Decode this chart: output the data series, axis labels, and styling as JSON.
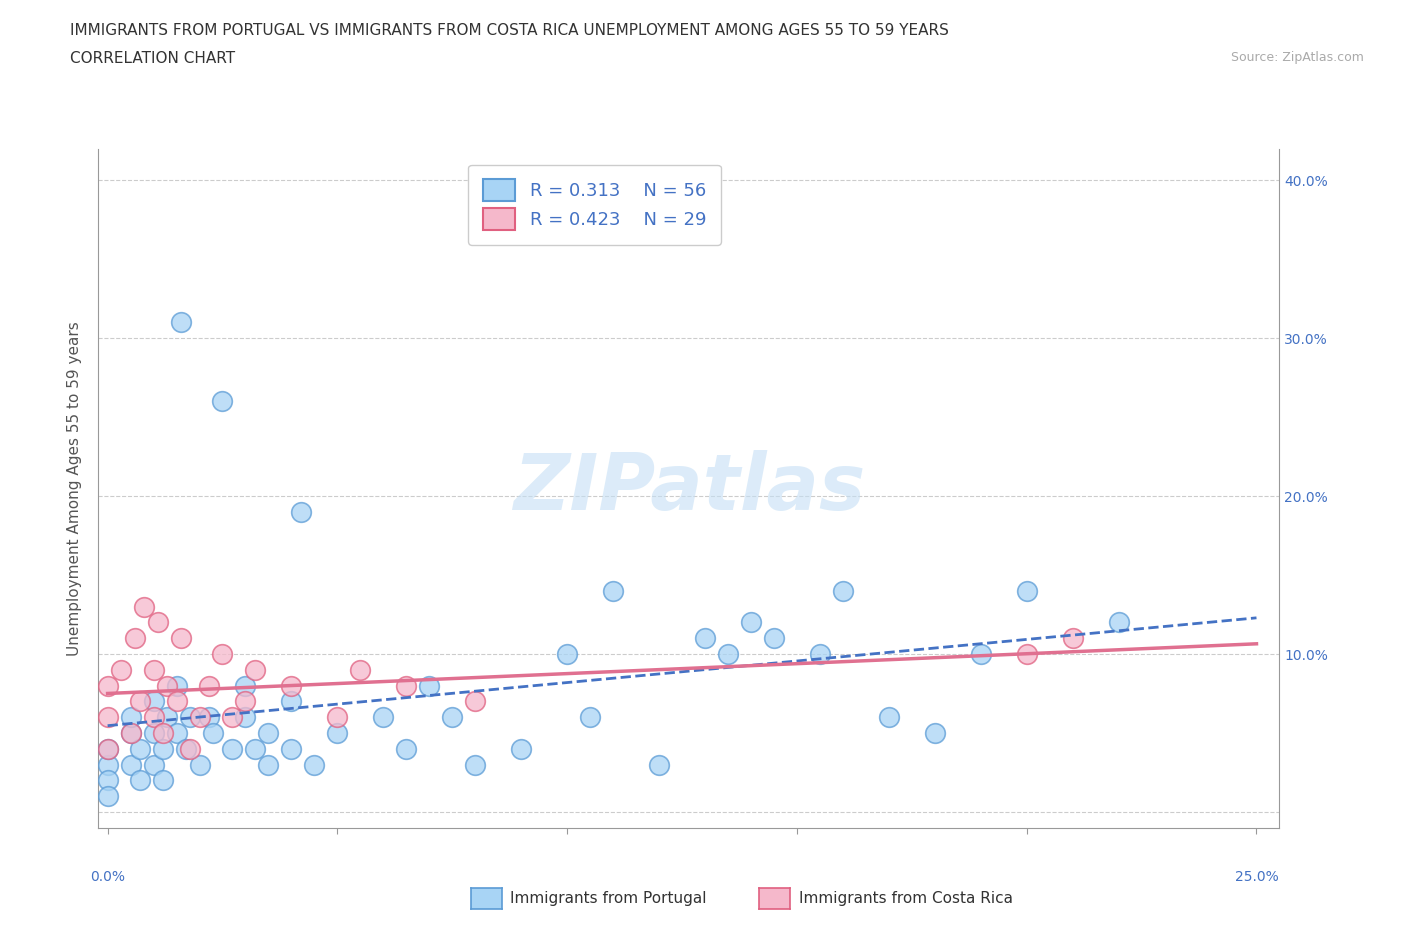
{
  "title_line1": "IMMIGRANTS FROM PORTUGAL VS IMMIGRANTS FROM COSTA RICA UNEMPLOYMENT AMONG AGES 55 TO 59 YEARS",
  "title_line2": "CORRELATION CHART",
  "source_text": "Source: ZipAtlas.com",
  "ylabel": "Unemployment Among Ages 55 to 59 years",
  "xlim": [
    -0.002,
    0.255
  ],
  "ylim": [
    -0.01,
    0.42
  ],
  "xtick_vals": [
    0.0,
    0.05,
    0.1,
    0.15,
    0.2,
    0.25
  ],
  "ytick_vals": [
    0.0,
    0.1,
    0.2,
    0.3,
    0.4
  ],
  "portugal_color": "#a8d4f5",
  "costa_rica_color": "#f5b8cb",
  "portugal_edge_color": "#5b9bd5",
  "costa_rica_edge_color": "#e06080",
  "portugal_line_color": "#4472c4",
  "costa_rica_line_color": "#e07090",
  "right_tick_color": "#4472c4",
  "bottom_tick_color": "#4472c4",
  "R_portugal": 0.313,
  "N_portugal": 56,
  "R_costa_rica": 0.423,
  "N_costa_rica": 29,
  "legend_label_portugal": "Immigrants from Portugal",
  "legend_label_costa_rica": "Immigrants from Costa Rica",
  "watermark": "ZIPatlas",
  "portugal_x": [
    0.0,
    0.0,
    0.0,
    0.0,
    0.005,
    0.005,
    0.005,
    0.007,
    0.007,
    0.01,
    0.01,
    0.01,
    0.012,
    0.012,
    0.013,
    0.015,
    0.015,
    0.016,
    0.017,
    0.018,
    0.02,
    0.022,
    0.023,
    0.025,
    0.027,
    0.03,
    0.03,
    0.032,
    0.035,
    0.035,
    0.04,
    0.04,
    0.042,
    0.045,
    0.05,
    0.06,
    0.065,
    0.07,
    0.075,
    0.08,
    0.09,
    0.1,
    0.105,
    0.11,
    0.12,
    0.13,
    0.135,
    0.14,
    0.145,
    0.155,
    0.16,
    0.17,
    0.18,
    0.19,
    0.2,
    0.22
  ],
  "portugal_y": [
    0.03,
    0.04,
    0.02,
    0.01,
    0.05,
    0.03,
    0.06,
    0.04,
    0.02,
    0.05,
    0.03,
    0.07,
    0.04,
    0.02,
    0.06,
    0.05,
    0.08,
    0.31,
    0.04,
    0.06,
    0.03,
    0.06,
    0.05,
    0.26,
    0.04,
    0.06,
    0.08,
    0.04,
    0.05,
    0.03,
    0.07,
    0.04,
    0.19,
    0.03,
    0.05,
    0.06,
    0.04,
    0.08,
    0.06,
    0.03,
    0.04,
    0.1,
    0.06,
    0.14,
    0.03,
    0.11,
    0.1,
    0.12,
    0.11,
    0.1,
    0.14,
    0.06,
    0.05,
    0.1,
    0.14,
    0.12
  ],
  "costa_rica_x": [
    0.0,
    0.0,
    0.0,
    0.003,
    0.005,
    0.006,
    0.007,
    0.008,
    0.01,
    0.01,
    0.011,
    0.012,
    0.013,
    0.015,
    0.016,
    0.018,
    0.02,
    0.022,
    0.025,
    0.027,
    0.03,
    0.032,
    0.04,
    0.05,
    0.055,
    0.065,
    0.08,
    0.2,
    0.21
  ],
  "costa_rica_y": [
    0.04,
    0.08,
    0.06,
    0.09,
    0.05,
    0.11,
    0.07,
    0.13,
    0.06,
    0.09,
    0.12,
    0.05,
    0.08,
    0.07,
    0.11,
    0.04,
    0.06,
    0.08,
    0.1,
    0.06,
    0.07,
    0.09,
    0.08,
    0.06,
    0.09,
    0.08,
    0.07,
    0.1,
    0.11
  ]
}
